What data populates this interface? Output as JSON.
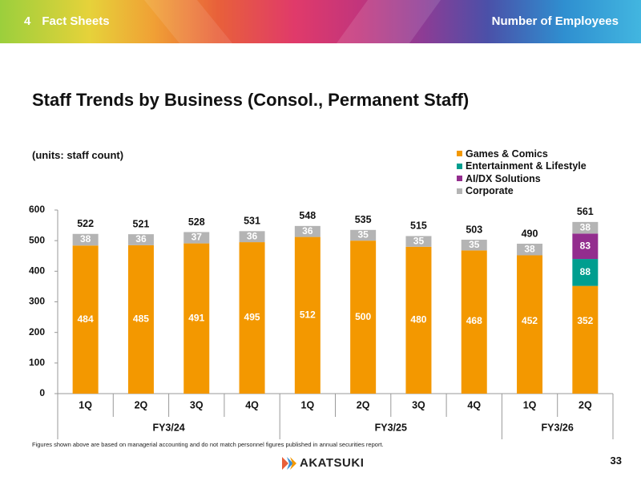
{
  "header": {
    "section_number": "4",
    "section_title": "Fact Sheets",
    "topic": "Number of Employees"
  },
  "slide": {
    "title": "Staff Trends by Business (Consol., Permanent Staff)",
    "units": "(units: staff count)",
    "footnote": "Figures shown above are based on managerial accounting and do not match personnel figures published in annual securities report.",
    "logo_text": "AKATSUKI",
    "page_number": "33"
  },
  "colors": {
    "games": "#f39800",
    "entertainment": "#009e8f",
    "aidx": "#932d8e",
    "corporate": "#b4b4b4",
    "banner_text": "#ffffff"
  },
  "chart_data": {
    "type": "bar",
    "stacked": true,
    "title": "Staff Trends by Business (Consol., Permanent Staff)",
    "ylabel": "(units: staff count)",
    "ylim": [
      0,
      600
    ],
    "yticks": [
      0,
      100,
      200,
      300,
      400,
      500,
      600
    ],
    "categories": [
      "1Q",
      "2Q",
      "3Q",
      "4Q",
      "1Q",
      "2Q",
      "3Q",
      "4Q",
      "1Q",
      "2Q"
    ],
    "groups": [
      {
        "label": "FY3/24",
        "span": 4
      },
      {
        "label": "FY3/25",
        "span": 4
      },
      {
        "label": "FY3/26",
        "span": 2
      }
    ],
    "series": [
      {
        "name": "Games & Comics",
        "color": "#f39800",
        "values": [
          484,
          485,
          491,
          495,
          512,
          500,
          480,
          468,
          452,
          352
        ]
      },
      {
        "name": "Entertainment & Lifestyle",
        "color": "#009e8f",
        "values": [
          null,
          null,
          null,
          null,
          null,
          null,
          null,
          null,
          null,
          88
        ]
      },
      {
        "name": "AI/DX Solutions",
        "color": "#932d8e",
        "values": [
          null,
          null,
          null,
          null,
          null,
          null,
          null,
          null,
          null,
          83
        ]
      },
      {
        "name": "Corporate",
        "color": "#b4b4b4",
        "values": [
          38,
          36,
          37,
          36,
          36,
          35,
          35,
          35,
          38,
          38
        ]
      }
    ],
    "totals": [
      522,
      521,
      528,
      531,
      548,
      535,
      515,
      503,
      490,
      561
    ],
    "legend_position": "top-right"
  }
}
